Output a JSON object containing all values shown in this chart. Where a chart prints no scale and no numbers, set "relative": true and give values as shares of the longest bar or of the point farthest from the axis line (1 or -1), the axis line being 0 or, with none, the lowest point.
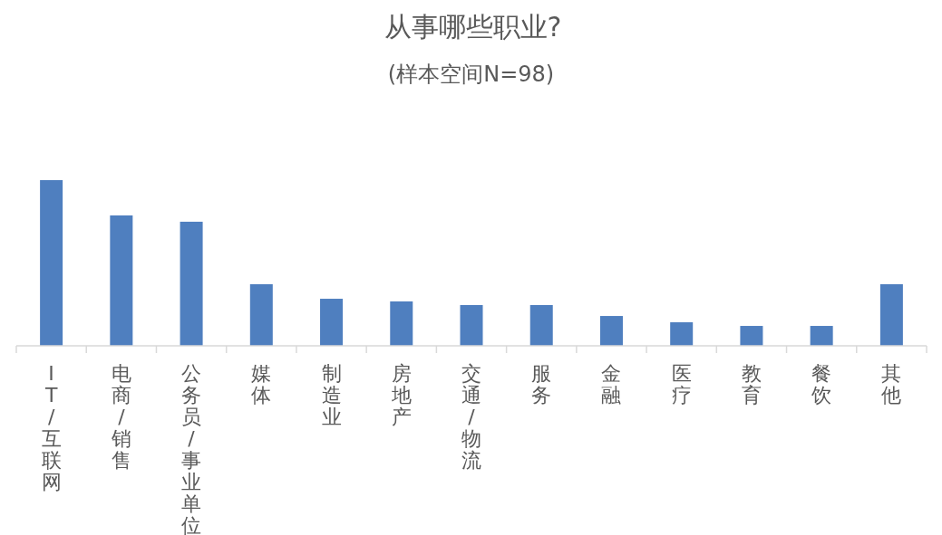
{
  "chart_data": {
    "type": "bar",
    "title": "从事哪些职业?",
    "subtitle": "(样本空间N=98)",
    "relative": true,
    "color": "#4f7fbf",
    "categories": [
      "IT/互联网",
      "电商/销售",
      "公务员/事业单位",
      "媒体",
      "制造业",
      "房地产",
      "交通/物流",
      "服务",
      "金融",
      "医疗",
      "教育",
      "餐饮",
      "其他"
    ],
    "values": [
      1,
      0.787,
      0.749,
      0.372,
      0.284,
      0.268,
      0.246,
      0.246,
      0.18,
      0.142,
      0.12,
      0.12,
      0.372
    ]
  }
}
